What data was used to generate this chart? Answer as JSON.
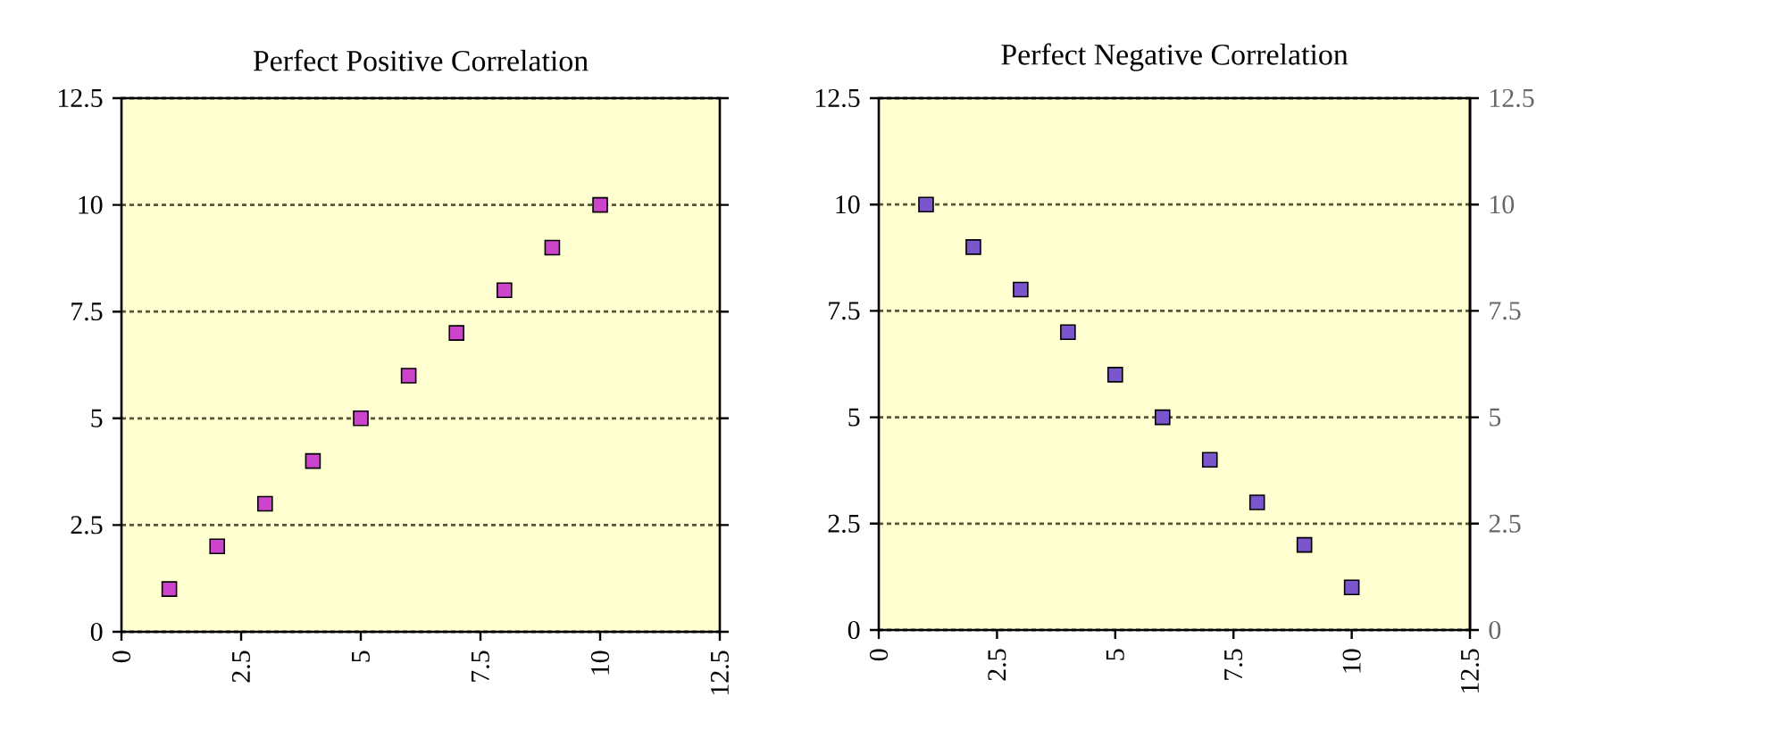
{
  "chart_data": [
    {
      "type": "scatter",
      "title": "Perfect Positive Correlation",
      "x": [
        1,
        2,
        3,
        4,
        5,
        6,
        7,
        8,
        9,
        10
      ],
      "values": [
        1,
        2,
        3,
        4,
        5,
        6,
        7,
        8,
        9,
        10
      ],
      "color": "#cc44cc",
      "marker": "square",
      "grid": "y",
      "xlim": [
        0,
        12.5
      ],
      "xticks": [
        0,
        2.5,
        5,
        7.5,
        10,
        12.5
      ],
      "ylim": [
        0,
        12.5
      ],
      "yticks": [
        0,
        2.5,
        5,
        7.5,
        10,
        12.5
      ]
    },
    {
      "type": "scatter",
      "title": "Perfect Negative Correlation",
      "x": [
        1,
        2,
        3,
        4,
        5,
        6,
        7,
        8,
        9,
        10
      ],
      "values": [
        10,
        9,
        8,
        7,
        6,
        5,
        4,
        3,
        2,
        1
      ],
      "color": "#7a55cc",
      "marker": "square",
      "grid": "y",
      "xlim": [
        0,
        12.5
      ],
      "xticks": [
        0,
        2.5,
        5,
        7.5,
        10,
        12.5
      ],
      "ylim": [
        0,
        12.5
      ],
      "yticks": [
        0,
        2.5,
        5,
        7.5,
        10,
        12.5
      ],
      "y2lim": [
        0,
        12.5
      ],
      "y2ticks": [
        0,
        2.5,
        5,
        7.5,
        10,
        12.5
      ]
    }
  ]
}
